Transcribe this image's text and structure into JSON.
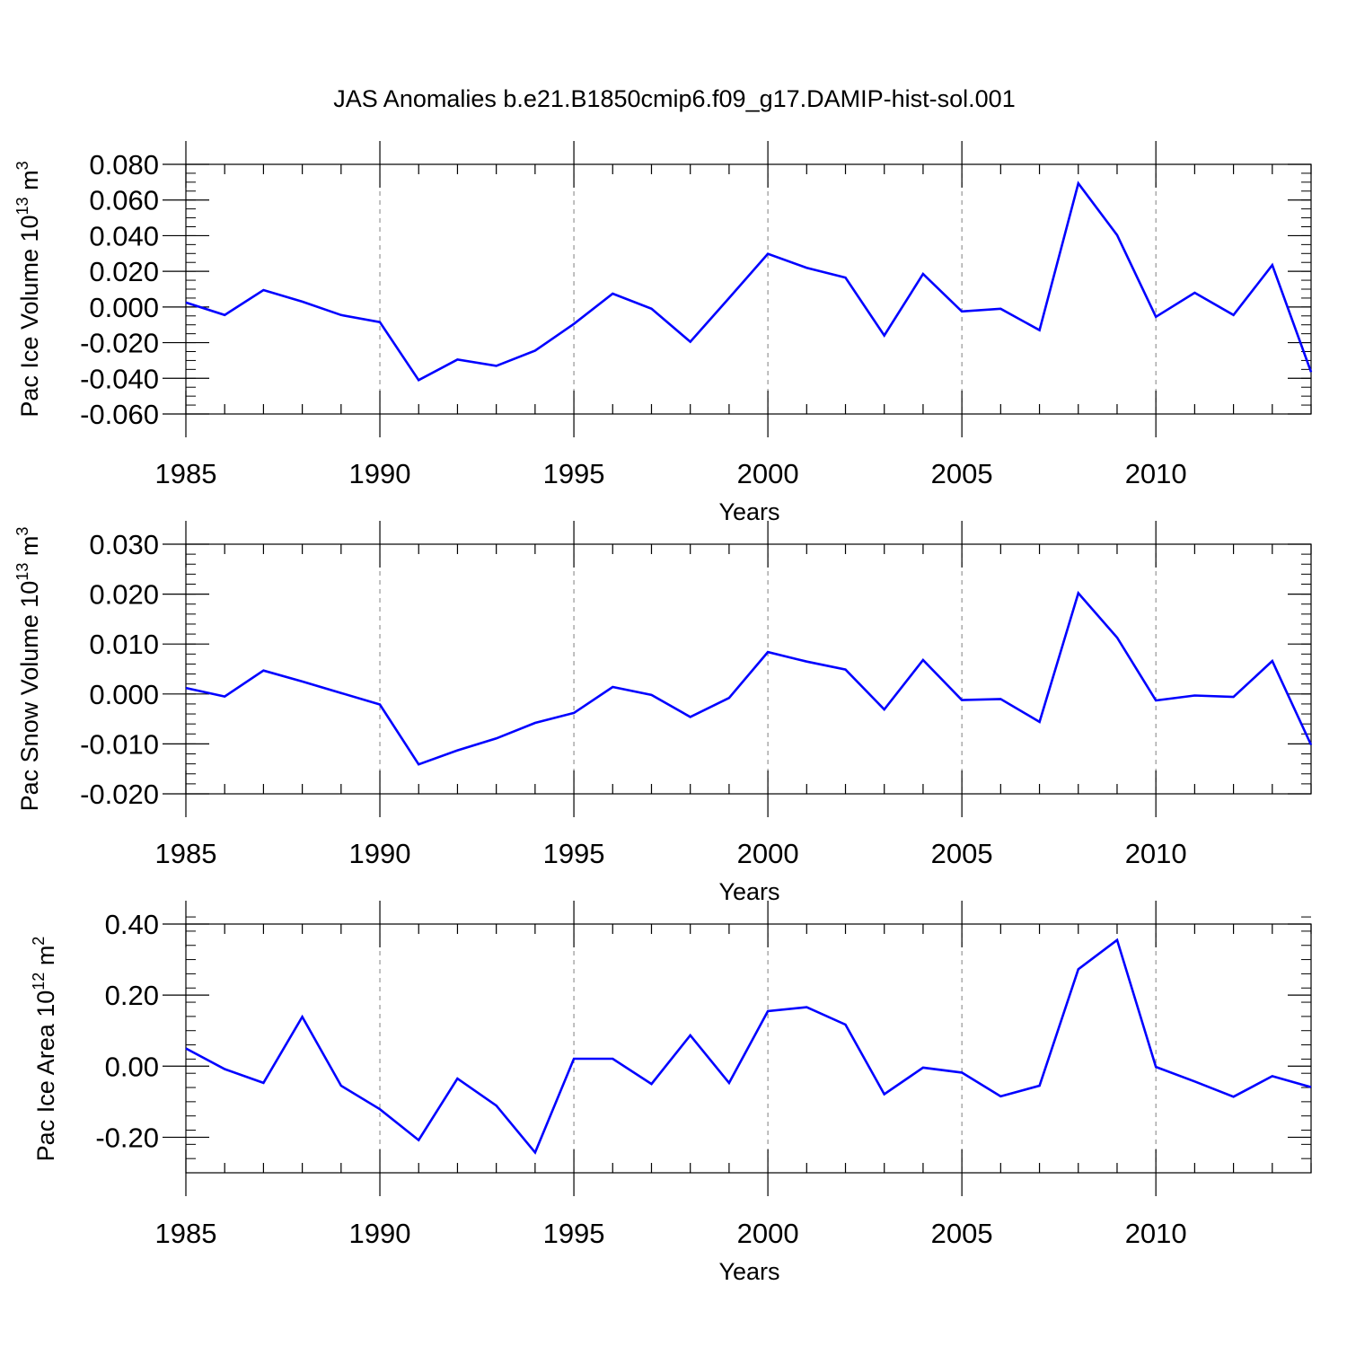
{
  "title": "JAS Anomalies b.e21.B1850cmip6.f09_g17.DAMIP-hist-sol.001",
  "colors": {
    "series": "#0000ff",
    "axes": "#000000",
    "grid": "#808080",
    "background": "#ffffff"
  },
  "chart_data": [
    {
      "type": "line",
      "ylabel": "Pac Ice Volume 10",
      "ylabel_exp": "13",
      "ylabel_unit": " m",
      "ylabel_unit_exp": "3",
      "xlabel": "Years",
      "xlim": [
        1985,
        2014
      ],
      "ylim": [
        -0.06,
        0.08
      ],
      "x_ticks": [
        1985,
        1990,
        1995,
        2000,
        2005,
        2010
      ],
      "x_tick_labels": [
        "1985",
        "1990",
        "1995",
        "2000",
        "2005",
        "2010"
      ],
      "y_ticks": [
        -0.06,
        -0.04,
        -0.02,
        0.0,
        0.02,
        0.04,
        0.06,
        0.08
      ],
      "y_tick_labels": [
        "-0.060",
        "-0.040",
        "-0.020",
        "0.000",
        "0.020",
        "0.040",
        "0.060",
        "0.080"
      ],
      "y_minor_step": 0.005,
      "grid": "dashed vertical at labeled years",
      "x": [
        1985,
        1986,
        1987,
        1988,
        1989,
        1990,
        1991,
        1992,
        1993,
        1994,
        1995,
        1996,
        1997,
        1998,
        1999,
        2000,
        2001,
        2002,
        2003,
        2004,
        2005,
        2006,
        2007,
        2008,
        2009,
        2010,
        2011,
        2012,
        2013,
        2014
      ],
      "y": [
        0.0025,
        -0.0045,
        0.0095,
        0.003,
        -0.0045,
        -0.0085,
        -0.041,
        -0.0295,
        -0.033,
        -0.0245,
        -0.0095,
        0.0075,
        -0.001,
        -0.0195,
        0.005,
        0.0298,
        0.022,
        0.0165,
        -0.016,
        0.0185,
        -0.0025,
        -0.001,
        -0.013,
        0.0693,
        0.0403,
        -0.0055,
        0.008,
        -0.0045,
        0.0235,
        -0.0365
      ]
    },
    {
      "type": "line",
      "ylabel": "Pac Snow Volume 10",
      "ylabel_exp": "13",
      "ylabel_unit": " m",
      "ylabel_unit_exp": "3",
      "xlabel": "Years",
      "xlim": [
        1985,
        2014
      ],
      "ylim": [
        -0.02,
        0.03
      ],
      "x_ticks": [
        1985,
        1990,
        1995,
        2000,
        2005,
        2010
      ],
      "x_tick_labels": [
        "1985",
        "1990",
        "1995",
        "2000",
        "2005",
        "2010"
      ],
      "y_ticks": [
        -0.02,
        -0.01,
        0.0,
        0.01,
        0.02,
        0.03
      ],
      "y_tick_labels": [
        "-0.020",
        "-0.010",
        "0.000",
        "0.010",
        "0.020",
        "0.030"
      ],
      "y_minor_step": 0.002,
      "grid": "dashed vertical at labeled years",
      "x": [
        1985,
        1986,
        1987,
        1988,
        1989,
        1990,
        1991,
        1992,
        1993,
        1994,
        1995,
        1996,
        1997,
        1998,
        1999,
        2000,
        2001,
        2002,
        2003,
        2004,
        2005,
        2006,
        2007,
        2008,
        2009,
        2010,
        2011,
        2012,
        2013,
        2014
      ],
      "y": [
        0.0012,
        -0.0005,
        0.0047,
        0.0025,
        0.0002,
        -0.0021,
        -0.0141,
        -0.0113,
        -0.0089,
        -0.0058,
        -0.0038,
        0.0014,
        -0.0002,
        -0.0046,
        -0.0008,
        0.0084,
        0.0065,
        0.0049,
        -0.0031,
        0.0068,
        -0.0012,
        -0.001,
        -0.0056,
        0.0202,
        0.0113,
        -0.0013,
        -0.0003,
        -0.0006,
        0.0066,
        -0.0102
      ]
    },
    {
      "type": "line",
      "ylabel": "Pac Ice Area 10",
      "ylabel_exp": "12",
      "ylabel_unit": " m",
      "ylabel_unit_exp": "2",
      "xlabel": "Years",
      "xlim": [
        1985,
        2014
      ],
      "ylim": [
        -0.3,
        0.4
      ],
      "x_ticks": [
        1985,
        1990,
        1995,
        2000,
        2005,
        2010
      ],
      "x_tick_labels": [
        "1985",
        "1990",
        "1995",
        "2000",
        "2005",
        "2010"
      ],
      "y_ticks": [
        -0.2,
        0.0,
        0.2,
        0.4
      ],
      "y_tick_labels": [
        "-0.20",
        "0.00",
        "0.20",
        "0.40"
      ],
      "y_minor_step": 0.04,
      "grid": "dashed vertical at labeled years",
      "x": [
        1985,
        1986,
        1987,
        1988,
        1989,
        1990,
        1991,
        1992,
        1993,
        1994,
        1995,
        1996,
        1997,
        1998,
        1999,
        2000,
        2001,
        2002,
        2003,
        2004,
        2005,
        2006,
        2007,
        2008,
        2009,
        2010,
        2011,
        2012,
        2013,
        2014
      ],
      "y": [
        0.05,
        -0.008,
        -0.047,
        0.139,
        -0.055,
        -0.121,
        -0.208,
        -0.035,
        -0.111,
        -0.243,
        0.021,
        0.021,
        -0.05,
        0.087,
        -0.047,
        0.155,
        0.166,
        0.117,
        -0.079,
        -0.004,
        -0.018,
        -0.085,
        -0.055,
        0.273,
        0.355,
        -0.002,
        -0.043,
        -0.086,
        -0.028,
        -0.059
      ]
    }
  ]
}
